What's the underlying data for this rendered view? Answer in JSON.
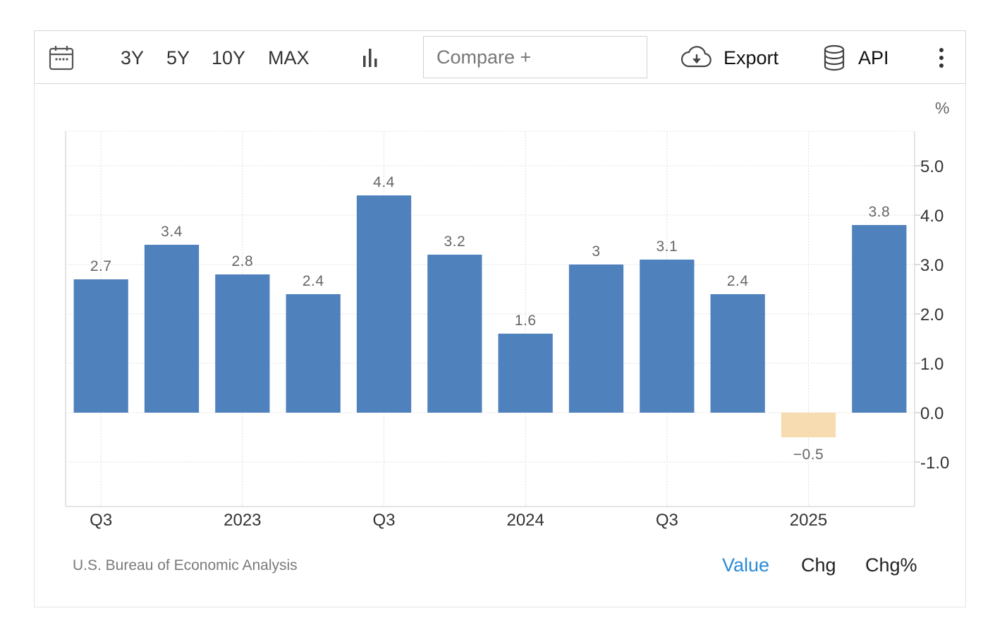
{
  "toolbar": {
    "ranges": [
      "3Y",
      "5Y",
      "10Y",
      "MAX"
    ],
    "compare_label": "Compare +",
    "export_label": "Export",
    "api_label": "API",
    "icons": {
      "calendar": "calendar-icon",
      "chart_type": "bar-chart-icon",
      "export": "cloud-download-icon",
      "api": "database-icon",
      "more": "more-vertical-icon"
    }
  },
  "chart_data": {
    "type": "bar",
    "unit": "%",
    "values": [
      2.7,
      3.4,
      2.8,
      2.4,
      4.4,
      3.2,
      1.6,
      3,
      3.1,
      2.4,
      -0.5,
      3.8
    ],
    "value_labels": [
      "2.7",
      "3.4",
      "2.8",
      "2.4",
      "4.4",
      "3.2",
      "1.6",
      "3",
      "3.1",
      "2.4",
      "−0.5",
      "3.8"
    ],
    "x_tick_labels": [
      {
        "bar_index": 0,
        "label": "Q3"
      },
      {
        "bar_index": 2,
        "label": "2023"
      },
      {
        "bar_index": 4,
        "label": "Q3"
      },
      {
        "bar_index": 6,
        "label": "2024"
      },
      {
        "bar_index": 8,
        "label": "Q3"
      },
      {
        "bar_index": 10,
        "label": "2025"
      }
    ],
    "y_ticks": [
      {
        "value": 5,
        "label": "5.0"
      },
      {
        "value": 4,
        "label": "4.0"
      },
      {
        "value": 3,
        "label": "3.0"
      },
      {
        "value": 2,
        "label": "2.0"
      },
      {
        "value": 1,
        "label": "1.0"
      },
      {
        "value": 0,
        "label": "0.0"
      },
      {
        "value": -1,
        "label": "-1.0"
      }
    ],
    "ylim": [
      -1.9,
      5.7
    ],
    "grid": true,
    "y_axis_side": "right",
    "colors": {
      "positive": "#4f81bd",
      "negative": "#f6dcb0"
    }
  },
  "footer": {
    "source": "U.S. Bureau of Economic Analysis",
    "links": [
      "Value",
      "Chg",
      "Chg%"
    ],
    "active_link": "Value",
    "accent_color": "#2b8ad8"
  }
}
